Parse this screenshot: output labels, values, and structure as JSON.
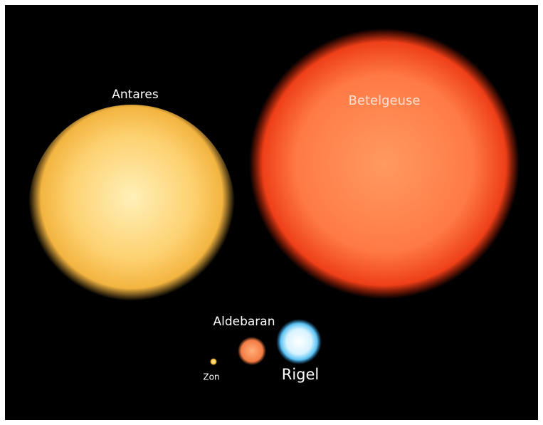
{
  "stars": [
    {
      "label": "Antares"
    },
    {
      "label": "Betelgeuse"
    },
    {
      "label": "Aldebaran"
    },
    {
      "label": "Zon"
    },
    {
      "label": "Rigel"
    }
  ]
}
